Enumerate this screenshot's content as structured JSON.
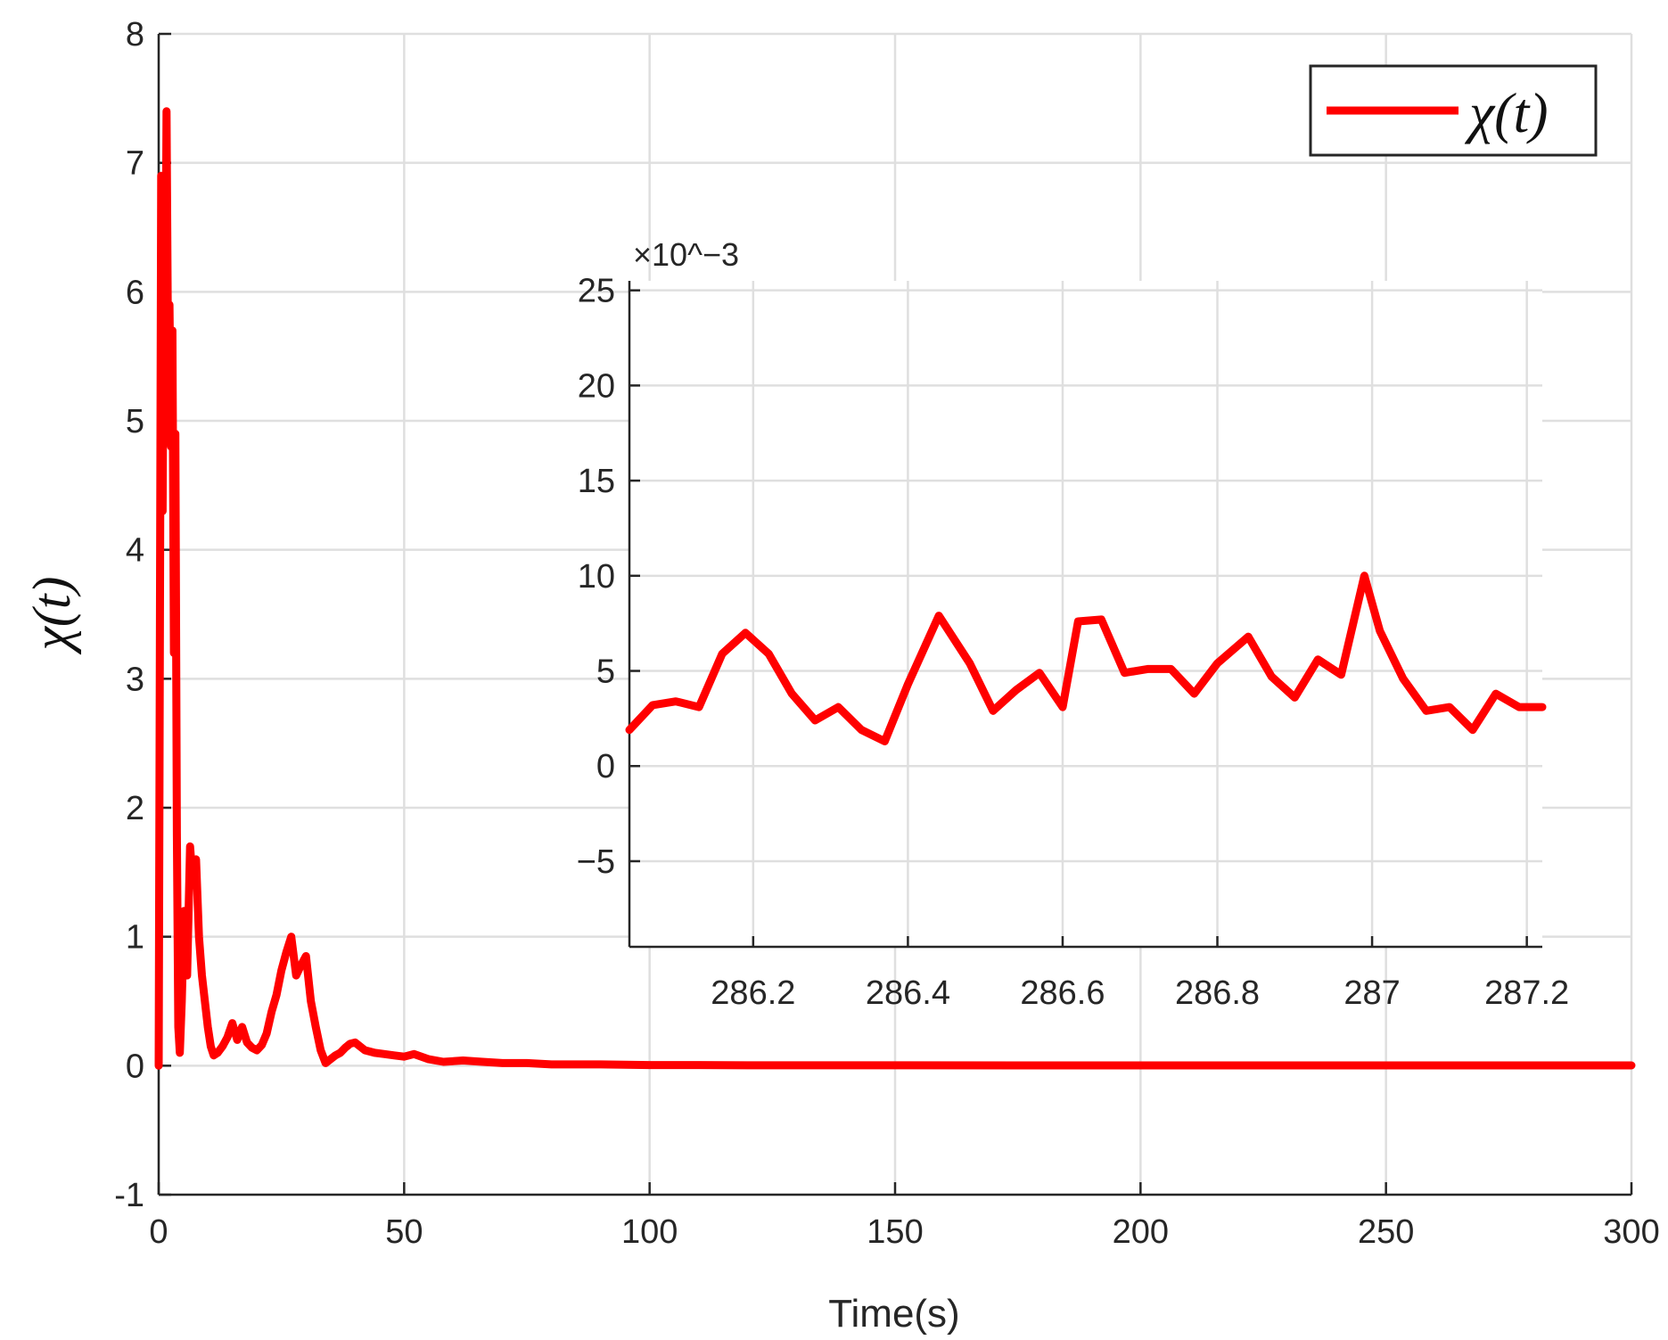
{
  "chart_data": [
    {
      "type": "line",
      "title": "",
      "xlabel": "Time(s)",
      "ylabel": "χ(t)",
      "xlim": [
        0,
        300
      ],
      "ylim": [
        -1,
        8
      ],
      "x_ticks": [
        "0",
        "50",
        "100",
        "150",
        "200",
        "250",
        "300"
      ],
      "y_ticks": [
        "-1",
        "0",
        "1",
        "2",
        "3",
        "4",
        "5",
        "6",
        "7",
        "8"
      ],
      "grid": true,
      "legend_position": "top-right",
      "series": [
        {
          "name": "χ(t)",
          "color": "#ff0000",
          "x": [
            0,
            0.5,
            0.8,
            1.1,
            1.3,
            1.6,
            1.9,
            2.2,
            2.5,
            2.8,
            3.1,
            3.4,
            3.7,
            4.0,
            4.3,
            4.7,
            5.2,
            5.8,
            6.4,
            7.0,
            7.6,
            8.2,
            8.8,
            9.4,
            10.0,
            10.6,
            11.2,
            12.0,
            13.0,
            14.0,
            15.0,
            16.0,
            17.0,
            18.0,
            19.0,
            20.0,
            21.0,
            22.0,
            23.0,
            24.0,
            25.0,
            26.0,
            27.0,
            28.0,
            29.0,
            30.0,
            31.0,
            32.0,
            33.0,
            34.0,
            35.0,
            36.0,
            37.0,
            38.0,
            39.0,
            40.0,
            42.0,
            44.0,
            46.0,
            48.0,
            50.0,
            52.0,
            55.0,
            58.0,
            62.0,
            66.0,
            70.0,
            75.0,
            80.0,
            85.0,
            90.0,
            100.0,
            110.0,
            120.0,
            130.0,
            140.0,
            150.0,
            175.0,
            200.0,
            225.0,
            250.0,
            275.0,
            300.0
          ],
          "y": [
            0.0,
            6.9,
            4.3,
            6.6,
            5.2,
            7.4,
            5.5,
            5.9,
            4.8,
            5.7,
            3.2,
            4.9,
            1.8,
            0.3,
            0.1,
            0.5,
            1.2,
            0.7,
            1.7,
            1.4,
            1.6,
            1.0,
            0.7,
            0.5,
            0.3,
            0.15,
            0.08,
            0.1,
            0.15,
            0.22,
            0.33,
            0.2,
            0.3,
            0.18,
            0.14,
            0.12,
            0.16,
            0.25,
            0.42,
            0.55,
            0.74,
            0.88,
            1.0,
            0.7,
            0.78,
            0.85,
            0.5,
            0.3,
            0.12,
            0.02,
            0.05,
            0.08,
            0.1,
            0.14,
            0.17,
            0.18,
            0.12,
            0.1,
            0.09,
            0.08,
            0.07,
            0.09,
            0.05,
            0.03,
            0.04,
            0.03,
            0.02,
            0.02,
            0.01,
            0.01,
            0.01,
            0.005,
            0.005,
            0.003,
            0.003,
            0.003,
            0.003,
            0.002,
            0.002,
            0.002,
            0.002,
            0.002,
            0.002
          ]
        }
      ]
    },
    {
      "type": "line",
      "title": "",
      "xlabel": "",
      "ylabel": "",
      "y_multiplier": "×10^−3",
      "xlim": [
        286.04,
        287.22
      ],
      "ylim": [
        -9.5,
        25.5
      ],
      "x_ticks": [
        "286.2",
        "286.4",
        "286.6",
        "286.8",
        "287",
        "287.2"
      ],
      "y_ticks": [
        "−5",
        "0",
        "5",
        "10",
        "15",
        "20",
        "25"
      ],
      "grid": true,
      "series": [
        {
          "color": "#ff0000",
          "x": [
            286.04,
            286.07,
            286.1,
            286.13,
            286.16,
            286.19,
            286.22,
            286.25,
            286.28,
            286.31,
            286.34,
            286.37,
            286.4,
            286.44,
            286.48,
            286.51,
            286.54,
            286.57,
            286.6,
            286.62,
            286.65,
            286.68,
            286.71,
            286.74,
            286.77,
            286.8,
            286.84,
            286.87,
            286.9,
            286.93,
            286.96,
            286.99,
            287.01,
            287.04,
            287.07,
            287.1,
            287.13,
            287.16,
            287.19,
            287.22
          ],
          "y": [
            1.9,
            3.2,
            3.4,
            3.1,
            5.9,
            7.0,
            5.9,
            3.8,
            2.4,
            3.1,
            1.9,
            1.3,
            4.3,
            7.9,
            5.4,
            2.9,
            4.0,
            4.9,
            3.1,
            7.6,
            7.7,
            4.9,
            5.1,
            5.1,
            3.8,
            5.4,
            6.8,
            4.7,
            3.6,
            5.6,
            4.8,
            10.0,
            7.1,
            4.6,
            2.9,
            3.1,
            1.9,
            3.8,
            3.1,
            3.1
          ]
        }
      ]
    }
  ],
  "legend": {
    "entries": [
      {
        "label": "χ(t)",
        "color": "#ff0000"
      }
    ]
  }
}
